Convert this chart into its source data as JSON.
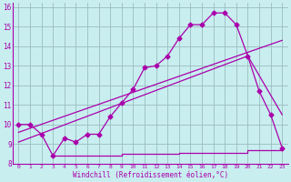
{
  "xlabel": "Windchill (Refroidissement éolien,°C)",
  "xlim": [
    -0.5,
    23.5
  ],
  "ylim": [
    8,
    16.2
  ],
  "yticks": [
    8,
    9,
    10,
    11,
    12,
    13,
    14,
    15,
    16
  ],
  "xticks": [
    0,
    1,
    2,
    3,
    4,
    5,
    6,
    7,
    8,
    9,
    10,
    11,
    12,
    13,
    14,
    15,
    16,
    17,
    18,
    19,
    20,
    21,
    22,
    23
  ],
  "background_color": "#c8eef0",
  "grid_color": "#9bbcbd",
  "line_color": "#aa00aa",
  "line1_x": [
    0,
    1,
    2,
    3,
    4,
    5,
    6,
    7,
    8,
    9,
    10,
    11,
    12,
    13,
    14,
    15,
    16,
    17,
    18,
    19,
    20,
    21,
    22,
    23
  ],
  "line1_y": [
    10.0,
    10.0,
    9.5,
    8.4,
    9.3,
    9.1,
    9.5,
    9.5,
    10.4,
    11.1,
    11.8,
    12.9,
    13.0,
    13.5,
    14.4,
    15.1,
    15.1,
    15.7,
    15.7,
    15.1,
    13.5,
    11.7,
    10.5,
    8.8
  ],
  "line2_x": [
    0,
    23
  ],
  "line2_y": [
    9.6,
    14.3
  ],
  "line3_x": [
    0,
    20,
    23
  ],
  "line3_y": [
    9.1,
    13.5,
    10.5
  ],
  "line4_x": [
    3,
    9,
    9,
    14,
    14,
    20,
    20,
    23
  ],
  "line4_y": [
    8.4,
    8.4,
    8.5,
    8.5,
    8.55,
    8.55,
    8.7,
    8.7
  ],
  "marker": "D",
  "markersize": 2.5,
  "linewidth": 0.9
}
